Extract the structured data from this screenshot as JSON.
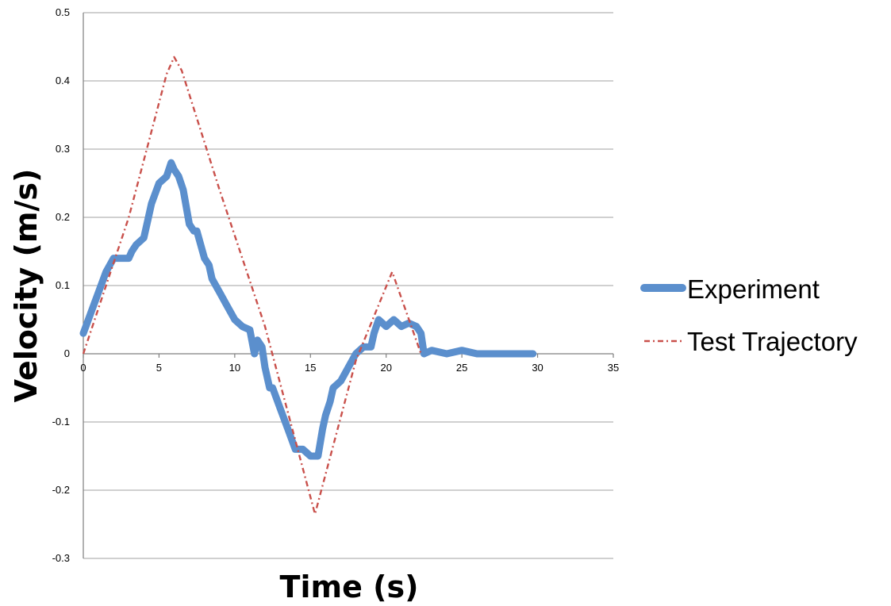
{
  "chart_data": {
    "type": "line",
    "title": "",
    "xlabel": "Time (s)",
    "ylabel": "Velocity (m/s)",
    "xlim": [
      0,
      35
    ],
    "ylim": [
      -0.3,
      0.5
    ],
    "x_ticks": [
      0,
      5,
      10,
      15,
      20,
      25,
      30,
      35
    ],
    "y_ticks": [
      -0.3,
      -0.2,
      -0.1,
      0,
      0.1,
      0.2,
      0.3,
      0.4,
      0.5
    ],
    "x_tick_labels": [
      "0",
      "5",
      "10",
      "15",
      "20",
      "25",
      "30",
      "35"
    ],
    "y_tick_labels": [
      "-0.3",
      "-0.2",
      "-0.1",
      "0",
      "0.1",
      "0.2",
      "0.3",
      "0.4",
      "0.5"
    ],
    "grid": true,
    "legend_position": "right",
    "series": [
      {
        "name": "Experiment",
        "color": "#5b8fcd",
        "style": "solid-thick",
        "x": [
          0,
          0.5,
          1,
          1.5,
          2,
          2.5,
          3,
          3.2,
          3.5,
          4,
          4.3,
          4.5,
          5,
          5.5,
          5.8,
          6,
          6.3,
          6.6,
          7,
          7.3,
          7.5,
          8,
          8.3,
          8.5,
          9,
          9.5,
          10,
          10.5,
          11,
          11.3,
          11.5,
          11.8,
          12,
          12.3,
          12.5,
          13,
          13.5,
          14,
          14.5,
          15,
          15.5,
          15.8,
          16,
          16.3,
          16.5,
          17,
          17.5,
          18,
          18.5,
          19,
          19.2,
          19.5,
          20,
          20.5,
          21,
          21.5,
          22,
          22.3,
          22.5,
          23,
          24,
          25,
          26,
          27,
          28,
          29,
          29.7
        ],
        "y": [
          0.03,
          0.06,
          0.09,
          0.12,
          0.14,
          0.14,
          0.14,
          0.15,
          0.16,
          0.17,
          0.2,
          0.22,
          0.25,
          0.26,
          0.28,
          0.27,
          0.26,
          0.24,
          0.19,
          0.18,
          0.18,
          0.14,
          0.13,
          0.11,
          0.09,
          0.07,
          0.05,
          0.04,
          0.035,
          0.0,
          0.02,
          0.01,
          -0.02,
          -0.05,
          -0.05,
          -0.08,
          -0.11,
          -0.14,
          -0.14,
          -0.15,
          -0.15,
          -0.11,
          -0.09,
          -0.07,
          -0.05,
          -0.04,
          -0.02,
          0.0,
          0.01,
          0.01,
          0.03,
          0.05,
          0.04,
          0.05,
          0.04,
          0.045,
          0.04,
          0.03,
          0.0,
          0.005,
          0.0,
          0.005,
          0.0,
          0.0,
          0.0,
          0.0,
          0.0
        ]
      },
      {
        "name": "Test Trajectory",
        "color": "#c9504b",
        "style": "dash-dot",
        "x": [
          0,
          3,
          5.5,
          6,
          6.5,
          9,
          12,
          15.3,
          18,
          20.4,
          22.3
        ],
        "y": [
          0,
          0.2,
          0.41,
          0.435,
          0.415,
          0.24,
          0.04,
          -0.235,
          -0.01,
          0.12,
          0.0
        ]
      }
    ]
  }
}
